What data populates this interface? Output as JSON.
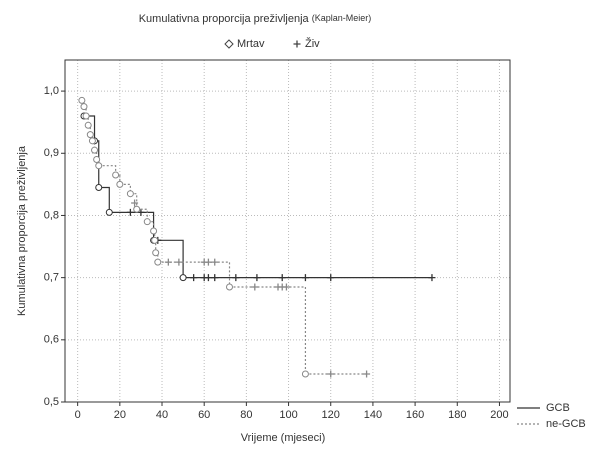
{
  "chart_data": {
    "type": "kaplan-meier",
    "title": "Kumulativna proporcija preživljenja",
    "title_note": "(Kaplan-Meier)",
    "marker_legend": {
      "death": "Mrtav",
      "censored": "Živ"
    },
    "x_label": "Vrijeme (mjeseci)",
    "y_label": "Kumulativna proporcija preživljenja",
    "xlim": [
      -6,
      205
    ],
    "ylim": [
      0.5,
      1.05
    ],
    "xticks": [
      0,
      20,
      40,
      60,
      80,
      100,
      120,
      140,
      160,
      180,
      200
    ],
    "yticks": [
      {
        "value": 0.5,
        "label": "0,5"
      },
      {
        "value": 0.6,
        "label": "0,6"
      },
      {
        "value": 0.7,
        "label": "0,7"
      },
      {
        "value": 0.8,
        "label": "0,8"
      },
      {
        "value": 0.9,
        "label": "0,9"
      },
      {
        "value": 1.0,
        "label": "1,0"
      }
    ],
    "grid": true,
    "series": [
      {
        "name": "GCB",
        "color": "#333333",
        "dashed": false,
        "x": [
          3,
          8,
          10,
          15,
          36,
          50
        ],
        "values": [
          0.96,
          0.92,
          0.845,
          0.805,
          0.76,
          0.7
        ],
        "censored_x": [
          25,
          30,
          38,
          55,
          60,
          62,
          65,
          75,
          85,
          97,
          108,
          120,
          168
        ],
        "censored_y": [
          0.805,
          0.805,
          0.76,
          0.7,
          0.7,
          0.7,
          0.7,
          0.7,
          0.7,
          0.7,
          0.7,
          0.7,
          0.7
        ]
      },
      {
        "name": "ne-GCB",
        "color": "#888888",
        "dashed": true,
        "x": [
          2,
          3,
          4,
          5,
          6,
          7,
          8,
          9,
          10,
          18,
          20,
          25,
          28,
          33,
          36,
          36.5,
          37,
          38,
          72,
          108
        ],
        "values": [
          0.985,
          0.975,
          0.96,
          0.945,
          0.93,
          0.92,
          0.905,
          0.89,
          0.88,
          0.865,
          0.85,
          0.835,
          0.81,
          0.79,
          0.775,
          0.76,
          0.74,
          0.725,
          0.685,
          0.545
        ],
        "censored_x": [
          27,
          43,
          48,
          60,
          62,
          65,
          84,
          95,
          97,
          99,
          120,
          137
        ],
        "censored_y": [
          0.82,
          0.725,
          0.725,
          0.725,
          0.725,
          0.725,
          0.685,
          0.685,
          0.685,
          0.685,
          0.545,
          0.545
        ]
      }
    ]
  }
}
